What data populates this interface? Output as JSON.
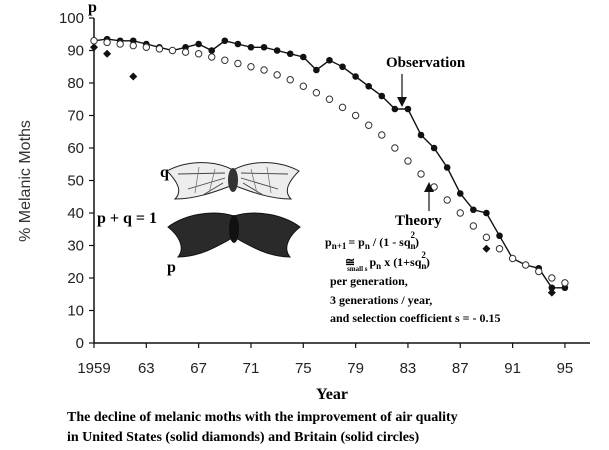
{
  "chart_data": {
    "type": "scatter",
    "ylabel": "% Melanic Moths",
    "xlabel": "Year",
    "y_axis_symbol": "p",
    "ylim": [
      0,
      100
    ],
    "xlim": [
      1959,
      1996
    ],
    "y_ticks": [
      0,
      10,
      20,
      30,
      40,
      50,
      60,
      70,
      80,
      90,
      100
    ],
    "x_ticks": [
      1959,
      1963,
      1967,
      1971,
      1975,
      1979,
      1983,
      1987,
      1991,
      1995
    ],
    "x_tick_labels": [
      "1959",
      "63",
      "67",
      "71",
      "75",
      "79",
      "83",
      "87",
      "91",
      "95"
    ],
    "grid": false,
    "series": [
      {
        "marker": "filled-circle",
        "connected": true,
        "color": "#111111",
        "points": [
          [
            1959,
            93
          ],
          [
            1960,
            93.5
          ],
          [
            1961,
            93
          ],
          [
            1962,
            93
          ],
          [
            1963,
            92
          ],
          [
            1964,
            91
          ],
          [
            1965,
            90
          ],
          [
            1966,
            91
          ],
          [
            1967,
            92
          ],
          [
            1968,
            90
          ],
          [
            1969,
            93
          ],
          [
            1970,
            92
          ],
          [
            1971,
            91
          ],
          [
            1972,
            91
          ],
          [
            1973,
            90
          ],
          [
            1974,
            89
          ],
          [
            1975,
            88
          ],
          [
            1976,
            84
          ],
          [
            1977,
            87
          ],
          [
            1978,
            85
          ],
          [
            1979,
            82
          ],
          [
            1980,
            79
          ],
          [
            1981,
            76
          ],
          [
            1982,
            72
          ],
          [
            1983,
            72
          ],
          [
            1984,
            64
          ],
          [
            1985,
            60
          ],
          [
            1986,
            54
          ],
          [
            1987,
            46
          ],
          [
            1988,
            41
          ],
          [
            1989,
            40
          ],
          [
            1990,
            33
          ],
          [
            1991,
            26
          ],
          [
            1992,
            24
          ],
          [
            1993,
            23
          ],
          [
            1994,
            17
          ],
          [
            1995,
            17
          ]
        ]
      },
      {
        "marker": "solid-diamond",
        "connected": false,
        "color": "#111111",
        "points": [
          [
            1959,
            91
          ],
          [
            1960,
            89
          ],
          [
            1962,
            82
          ],
          [
            1989,
            29
          ],
          [
            1994,
            15.5
          ]
        ]
      },
      {
        "marker": "open-circle",
        "connected": false,
        "color": "#333333",
        "points": [
          [
            1959,
            93
          ],
          [
            1960,
            92.5
          ],
          [
            1961,
            92
          ],
          [
            1962,
            91.5
          ],
          [
            1963,
            91
          ],
          [
            1964,
            90.5
          ],
          [
            1965,
            90
          ],
          [
            1966,
            89.5
          ],
          [
            1967,
            89
          ],
          [
            1968,
            88
          ],
          [
            1969,
            87
          ],
          [
            1970,
            86
          ],
          [
            1971,
            85
          ],
          [
            1972,
            84
          ],
          [
            1973,
            82.5
          ],
          [
            1974,
            81
          ],
          [
            1975,
            79
          ],
          [
            1976,
            77
          ],
          [
            1977,
            75
          ],
          [
            1978,
            72.5
          ],
          [
            1979,
            70
          ],
          [
            1980,
            67
          ],
          [
            1981,
            64
          ],
          [
            1982,
            60
          ],
          [
            1983,
            56
          ],
          [
            1984,
            52
          ],
          [
            1985,
            48
          ],
          [
            1986,
            44
          ],
          [
            1987,
            40
          ],
          [
            1988,
            36
          ],
          [
            1989,
            32.5
          ],
          [
            1990,
            29
          ],
          [
            1991,
            26
          ],
          [
            1992,
            24
          ],
          [
            1993,
            22
          ],
          [
            1994,
            20
          ],
          [
            1995,
            18.5
          ]
        ]
      }
    ],
    "annotations": {
      "observation": "Observation",
      "theory": "Theory",
      "q_label": "q",
      "pq_label": "p + q = 1",
      "p_label": "p",
      "formula": {
        "line1": {
          "a": "p",
          "a_sub": "n+1",
          "b": "= p",
          "b_sub": "n",
          "c": "/ (1 - sq",
          "c_sub": "n",
          "c_sup": "2",
          "d": ")"
        },
        "line2": {
          "prefix": "≅",
          "prefix_sub": "small s",
          "a": "p",
          "a_sub": "n",
          "b": "x (1+sq",
          "b_sub": "n",
          "b_sup": "2",
          "c": ")"
        },
        "line3": "per generation,",
        "line4": "3 generations / year,",
        "line5": "and selection coefficient s = - 0.15"
      }
    },
    "caption": {
      "line1": "The decline of melanic moths with the improvement of air quality",
      "line2": "in United States (solid diamonds) and Britain (solid circles)"
    }
  }
}
